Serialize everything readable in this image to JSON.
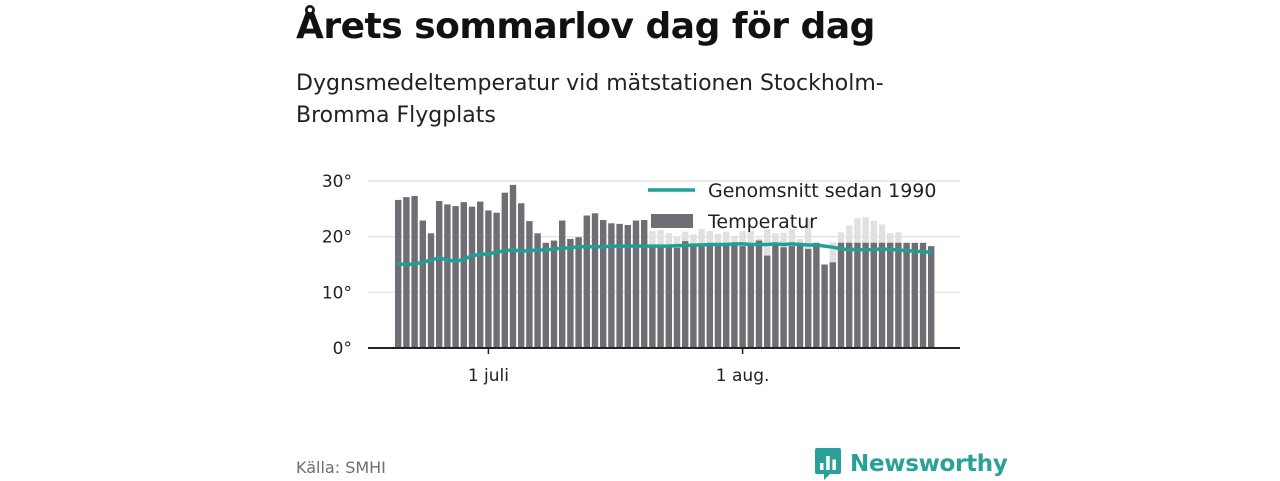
{
  "title": "Årets sommarlov dag för dag",
  "subtitle": "Dygnsmedeltemperatur vid mätstationen Stockholm-Bromma Flygplats",
  "source": "Källa: SMHI",
  "brand": {
    "name": "Newsworthy",
    "logo_icon": "chart-speech-bubble-icon",
    "color": "#2aa198"
  },
  "colors": {
    "bar": "#6e6e74",
    "bar_ghost": "#e1e1e1",
    "line": "#1fa096",
    "grid": "#dedede",
    "axis": "#222222"
  },
  "chart_data": {
    "type": "bar",
    "grid": true,
    "legend_position": "top-right",
    "ylim": [
      0,
      30
    ],
    "y_ticks": [
      0,
      10,
      20,
      30
    ],
    "y_tick_labels": [
      "0°",
      "10°",
      "20°",
      "30°"
    ],
    "x_ticks": [
      {
        "index": 11,
        "label": "1 juli"
      },
      {
        "index": 42,
        "label": "1 aug."
      }
    ],
    "legend": [
      {
        "label": "Genomsnitt sedan 1990",
        "symbol": "line"
      },
      {
        "label": "Temperatur",
        "symbol": "bar"
      }
    ],
    "series": [
      {
        "name": "Temperatur",
        "kind": "bar",
        "values": [
          26.6,
          27.1,
          27.3,
          22.9,
          20.6,
          26.4,
          25.8,
          25.5,
          26.2,
          25.4,
          26.3,
          24.7,
          24.3,
          27.9,
          29.3,
          26.0,
          22.8,
          20.6,
          18.9,
          19.3,
          22.9,
          19.6,
          19.9,
          23.8,
          24.2,
          23.0,
          22.4,
          22.3,
          22.1,
          22.9,
          23.0,
          18.4,
          18.6,
          18.6,
          18.0,
          19.2,
          18.6,
          18.8,
          18.4,
          18.6,
          18.8,
          18.6,
          18.3,
          18.6,
          19.3,
          16.6,
          18.9,
          18.1,
          18.3,
          18.9,
          17.8,
          18.9,
          15.0,
          15.4,
          18.9,
          18.9,
          18.9,
          18.9,
          18.9,
          18.9,
          18.9,
          18.9,
          18.9,
          18.9,
          18.9,
          18.3
        ]
      },
      {
        "name": "Temperatur (jämförelse)",
        "kind": "bar_ghost",
        "values": [
          null,
          null,
          null,
          null,
          null,
          null,
          null,
          null,
          null,
          null,
          null,
          null,
          null,
          null,
          null,
          null,
          null,
          null,
          null,
          null,
          null,
          null,
          null,
          null,
          null,
          null,
          null,
          null,
          null,
          null,
          20.2,
          21.0,
          21.2,
          20.6,
          19.9,
          20.9,
          20.4,
          21.4,
          21.0,
          20.5,
          20.9,
          20.1,
          21.0,
          21.0,
          19.7,
          21.3,
          20.6,
          20.7,
          21.4,
          19.6,
          23.2,
          null,
          null,
          19.0,
          20.8,
          22.0,
          23.3,
          23.5,
          22.9,
          22.2,
          20.6,
          20.8,
          null,
          null,
          null,
          null
        ]
      },
      {
        "name": "Genomsnitt sedan 1990",
        "kind": "line",
        "values": [
          15.1,
          15.0,
          15.1,
          15.4,
          15.8,
          16.2,
          15.8,
          15.6,
          15.9,
          16.6,
          16.8,
          16.9,
          17.2,
          17.5,
          17.6,
          17.4,
          17.5,
          17.6,
          17.6,
          17.8,
          17.9,
          18.0,
          18.2,
          18.2,
          18.2,
          18.2,
          18.3,
          18.3,
          18.3,
          18.3,
          18.3,
          18.3,
          18.3,
          18.3,
          18.4,
          18.4,
          18.5,
          18.5,
          18.6,
          18.6,
          18.6,
          18.7,
          18.7,
          18.6,
          18.6,
          18.6,
          18.7,
          18.6,
          18.7,
          18.6,
          18.5,
          18.5,
          18.3,
          18.1,
          17.8,
          17.7,
          17.7,
          17.6,
          17.7,
          17.8,
          17.7,
          17.6,
          17.5,
          17.4,
          17.3,
          17.2
        ]
      }
    ]
  }
}
